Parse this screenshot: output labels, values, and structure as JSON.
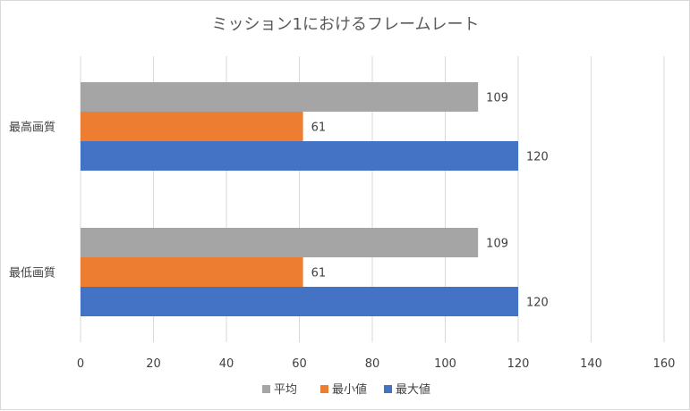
{
  "chart_data": {
    "type": "bar",
    "orientation": "horizontal",
    "title": "ミッション1におけるフレームレート",
    "categories": [
      "最高画質",
      "最低画質"
    ],
    "series": [
      {
        "name": "平均",
        "values": [
          109,
          109
        ],
        "color": "#a5a5a5"
      },
      {
        "name": "最小値",
        "values": [
          61,
          61
        ],
        "color": "#ed7d31"
      },
      {
        "name": "最大値",
        "values": [
          120,
          120
        ],
        "color": "#4472c4"
      }
    ],
    "xlim": [
      0,
      160
    ],
    "xticks": [
      "0",
      "20",
      "40",
      "60",
      "80",
      "100",
      "120",
      "140",
      "160"
    ],
    "grid": true,
    "legend_position": "bottom",
    "data_labels": true
  }
}
